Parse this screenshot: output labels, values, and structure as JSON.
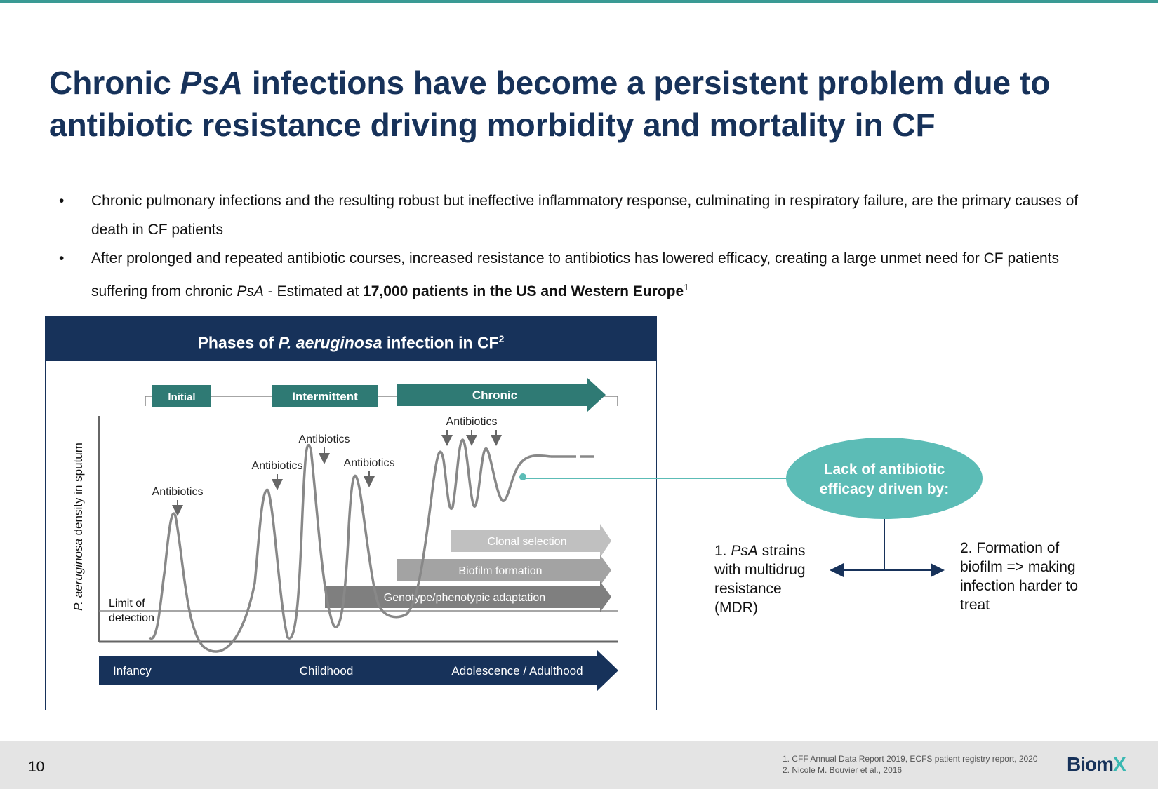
{
  "title": {
    "pre": "Chronic ",
    "italic": "PsA",
    "post": " infections have become a persistent problem due to antibiotic resistance driving morbidity and mortality in CF"
  },
  "bullets": [
    {
      "text": "Chronic pulmonary infections and the resulting robust but ineffective inflammatory response, culminating in respiratory failure, are the primary causes of death in CF patients"
    },
    {
      "pre": "After prolonged and repeated antibiotic courses, increased resistance to antibiotics has lowered efficacy, creating a large unmet need for CF patients suffering from chronic ",
      "italic": "PsA",
      "mid": " - Estimated at ",
      "bold": "17,000 patients in the US and Western Europe",
      "sup": "1"
    }
  ],
  "diagram": {
    "title_pre": "Phases of ",
    "title_italic": "P. aeruginosa",
    "title_post": " infection in CF",
    "title_sup": "2",
    "phases": [
      "Initial",
      "Intermittent",
      "Chronic"
    ],
    "y_axis_italic": "P. aeruginosa",
    "y_axis_rest": " density in sputum",
    "antibiotics_label": "Antibiotics",
    "limit_line1": "Limit of",
    "limit_line2": "detection",
    "mechanisms": [
      "Clonal selection",
      "Biofilm formation",
      "Genotype/phenotypic adaptation"
    ],
    "age_stages": [
      "Infancy",
      "Childhood",
      "Adolescence / Adulthood"
    ]
  },
  "callout": {
    "bubble_line1": "Lack of antibiotic",
    "bubble_line2": "efficacy driven by:",
    "reason1_pre": "1. ",
    "reason1_italic": "PsA",
    "reason1_post": " strains with multidrug resistance (MDR)",
    "reason2": "2. Formation of biofilm => making infection harder to treat"
  },
  "footer": {
    "page_number": "10",
    "ref1": "1. CFF Annual Data Report 2019, ECFS patient registry report, 2020",
    "ref2": "2. Nicole M. Bouvier et al., 2016",
    "logo_main": "Biom",
    "logo_x": "X"
  },
  "colors": {
    "navy": "#17325a",
    "teal": "#2f7a74",
    "bubble": "#5cbcb6"
  }
}
